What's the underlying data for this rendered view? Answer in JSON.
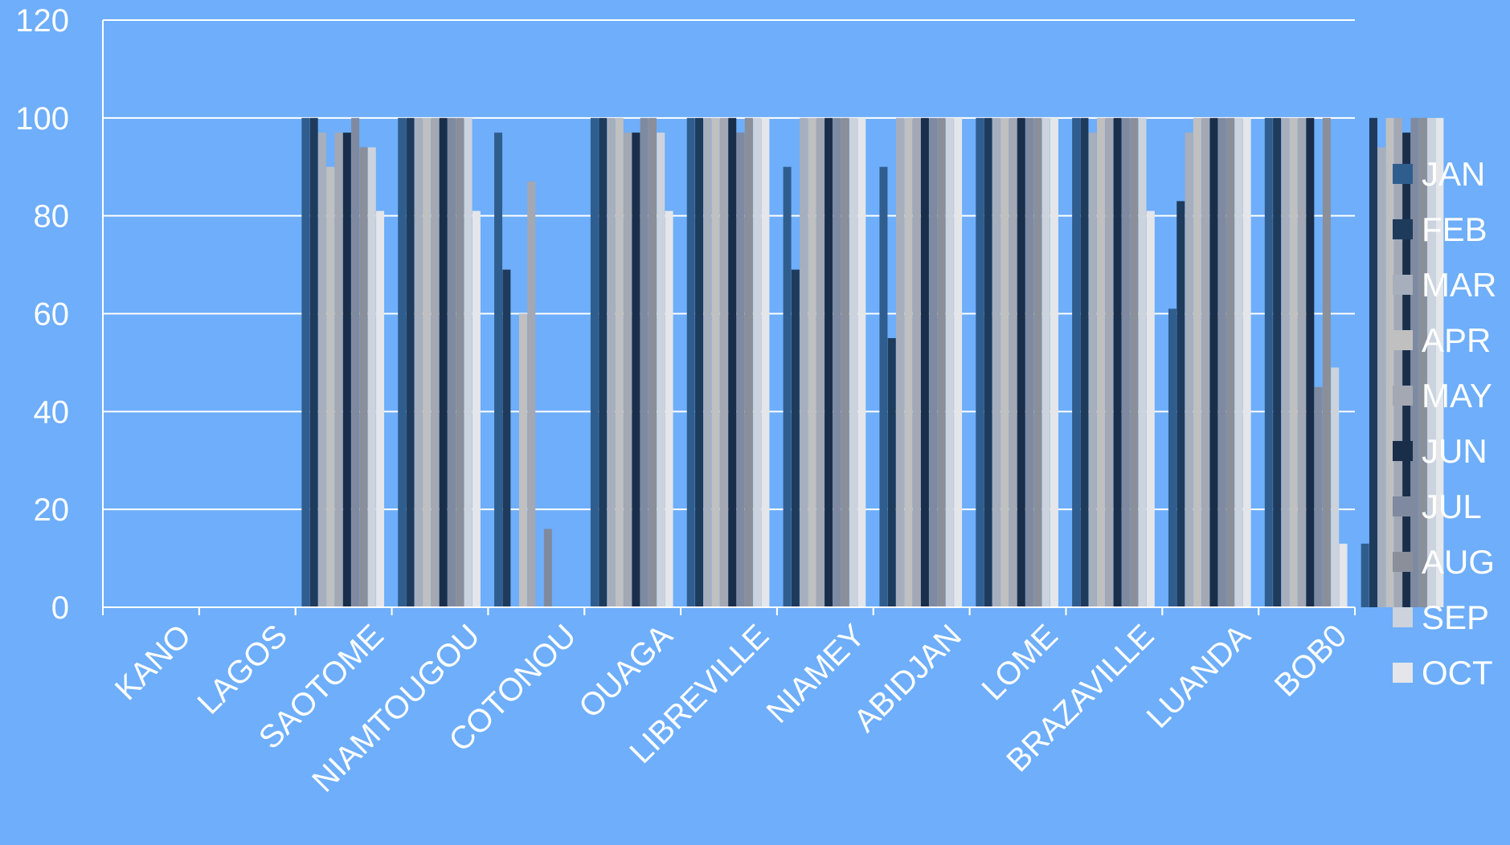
{
  "chart_data": {
    "type": "bar",
    "title": "",
    "xlabel": "",
    "ylabel": "",
    "ylim": [
      0,
      120
    ],
    "yticks": [
      0,
      20,
      40,
      60,
      80,
      100,
      120
    ],
    "grid": true,
    "legend_position": "right",
    "background": "#6eaefa",
    "categories": [
      "KANO",
      "LAGOS",
      "SAOTOME",
      "NIAMTOUGOU",
      "COTONOU",
      "OUAGA",
      "LIBREVILLE",
      "NIAMEY",
      "ABIDJAN",
      "LOME",
      "BRAZAVILLE",
      "LUANDA",
      "BOB0"
    ],
    "series": [
      {
        "name": "JAN",
        "color": "#2f5e8e",
        "values": [
          null,
          100,
          100,
          97,
          100,
          100,
          90,
          90,
          100,
          100,
          61,
          100,
          13
        ]
      },
      {
        "name": "FEB",
        "color": "#1f3b5c",
        "values": [
          null,
          100,
          100,
          69,
          100,
          100,
          69,
          55,
          100,
          100,
          83,
          100,
          100
        ]
      },
      {
        "name": "MAR",
        "color": "#a7afbd",
        "values": [
          null,
          97,
          100,
          null,
          100,
          100,
          100,
          100,
          100,
          97,
          97,
          100,
          94
        ]
      },
      {
        "name": "APR",
        "color": "#c0c0c0",
        "values": [
          null,
          90,
          100,
          60,
          100,
          100,
          100,
          100,
          100,
          100,
          100,
          100,
          100
        ]
      },
      {
        "name": "MAY",
        "color": "#a3a8b3",
        "values": [
          null,
          97,
          100,
          87,
          97,
          100,
          100,
          100,
          100,
          100,
          100,
          100,
          100
        ]
      },
      {
        "name": "JUN",
        "color": "#1b2e49",
        "values": [
          null,
          97,
          100,
          null,
          97,
          100,
          100,
          100,
          100,
          100,
          100,
          100,
          97
        ]
      },
      {
        "name": "JUL",
        "color": "#7f8aa0",
        "values": [
          null,
          100,
          100,
          16,
          100,
          97,
          100,
          100,
          100,
          100,
          100,
          45,
          100
        ]
      },
      {
        "name": "AUG",
        "color": "#8a8f99",
        "values": [
          null,
          94,
          100,
          null,
          100,
          100,
          100,
          100,
          100,
          100,
          100,
          100,
          100
        ]
      },
      {
        "name": "SEP",
        "color": "#ccd3dd",
        "values": [
          null,
          94,
          100,
          null,
          97,
          100,
          100,
          100,
          100,
          100,
          100,
          49,
          100
        ]
      },
      {
        "name": "OCT",
        "color": "#e4e6ea",
        "values": [
          null,
          81,
          81,
          null,
          81,
          100,
          100,
          100,
          100,
          81,
          100,
          13,
          100
        ]
      }
    ]
  }
}
